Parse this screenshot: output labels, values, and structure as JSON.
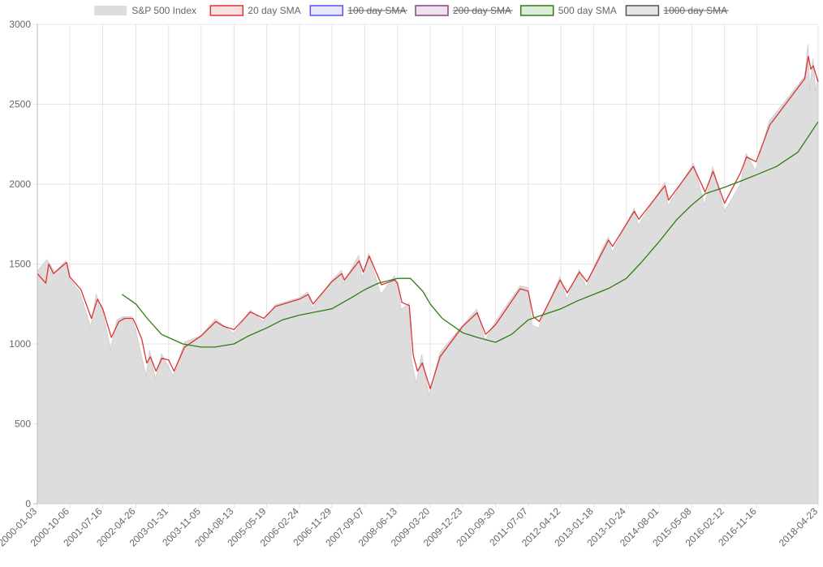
{
  "chart_data": {
    "type": "line",
    "title": "",
    "xlabel": "",
    "ylabel": "",
    "ylim": [
      0,
      3000
    ],
    "y_ticks": [
      0,
      500,
      1000,
      1500,
      2000,
      2500,
      3000
    ],
    "x_tick_labels": [
      "2000-01-03",
      "2000-10-06",
      "2001-07-16",
      "2002-04-26",
      "2003-01-31",
      "2003-11-05",
      "2004-08-13",
      "2005-05-19",
      "2006-02-24",
      "2006-11-29",
      "2007-09-07",
      "2008-06-13",
      "2009-03-20",
      "2009-12-23",
      "2010-09-30",
      "2011-07-07",
      "2012-04-12",
      "2013-01-18",
      "2013-10-24",
      "2014-08-01",
      "2015-05-08",
      "2016-02-12",
      "2016-11-16",
      "2018-04-23"
    ],
    "x_range": [
      "2000-01-03",
      "2018-04-23"
    ],
    "grid": true,
    "legend_position": "top",
    "series": [
      {
        "name": "S&P 500 Index",
        "style": "area",
        "color": "#dddddd",
        "hidden": false,
        "points": [
          [
            "2000-01-03",
            1455
          ],
          [
            "2000-03-24",
            1527
          ],
          [
            "2000-06-01",
            1450
          ],
          [
            "2000-09-01",
            1520
          ],
          [
            "2000-10-06",
            1408
          ],
          [
            "2001-01-02",
            1320
          ],
          [
            "2001-04-04",
            1103
          ],
          [
            "2001-05-21",
            1310
          ],
          [
            "2001-07-16",
            1200
          ],
          [
            "2001-09-21",
            966
          ],
          [
            "2001-11-15",
            1150
          ],
          [
            "2002-01-04",
            1170
          ],
          [
            "2002-03-19",
            1170
          ],
          [
            "2002-04-26",
            1076
          ],
          [
            "2002-07-23",
            797
          ],
          [
            "2002-08-22",
            960
          ],
          [
            "2002-10-09",
            777
          ],
          [
            "2002-12-02",
            937
          ],
          [
            "2003-01-31",
            856
          ],
          [
            "2003-03-11",
            800
          ],
          [
            "2003-06-17",
            1011
          ],
          [
            "2003-11-05",
            1051
          ],
          [
            "2004-03-05",
            1156
          ],
          [
            "2004-08-13",
            1064
          ],
          [
            "2004-12-31",
            1212
          ],
          [
            "2005-04-20",
            1138
          ],
          [
            "2005-08-03",
            1245
          ],
          [
            "2006-02-24",
            1289
          ],
          [
            "2006-05-05",
            1325
          ],
          [
            "2006-06-13",
            1223
          ],
          [
            "2006-11-29",
            1399
          ],
          [
            "2007-02-20",
            1460
          ],
          [
            "2007-03-05",
            1374
          ],
          [
            "2007-07-16",
            1553
          ],
          [
            "2007-08-15",
            1406
          ],
          [
            "2007-10-09",
            1565
          ],
          [
            "2008-01-22",
            1310
          ],
          [
            "2008-05-19",
            1426
          ],
          [
            "2008-06-13",
            1360
          ],
          [
            "2008-07-15",
            1214
          ],
          [
            "2008-09-19",
            1255
          ],
          [
            "2008-10-10",
            899
          ],
          [
            "2008-11-20",
            752
          ],
          [
            "2009-01-06",
            934
          ],
          [
            "2009-03-09",
            677
          ],
          [
            "2009-06-12",
            946
          ],
          [
            "2009-12-23",
            1118
          ],
          [
            "2010-04-23",
            1217
          ],
          [
            "2010-07-02",
            1022
          ],
          [
            "2010-09-30",
            1141
          ],
          [
            "2011-04-29",
            1363
          ],
          [
            "2011-07-07",
            1353
          ],
          [
            "2011-08-08",
            1119
          ],
          [
            "2011-10-03",
            1099
          ],
          [
            "2012-04-02",
            1419
          ],
          [
            "2012-06-01",
            1278
          ],
          [
            "2012-09-14",
            1465
          ],
          [
            "2012-11-15",
            1353
          ],
          [
            "2013-01-18",
            1485
          ],
          [
            "2013-05-21",
            1669
          ],
          [
            "2013-06-24",
            1573
          ],
          [
            "2013-12-31",
            1848
          ],
          [
            "2014-02-03",
            1741
          ],
          [
            "2014-09-18",
            2011
          ],
          [
            "2014-10-15",
            1862
          ],
          [
            "2015-05-21",
            2131
          ],
          [
            "2015-08-25",
            1867
          ],
          [
            "2015-11-03",
            2109
          ],
          [
            "2016-02-11",
            1829
          ],
          [
            "2016-06-27",
            2000
          ],
          [
            "2016-08-15",
            2190
          ],
          [
            "2016-11-04",
            2085
          ],
          [
            "2017-03-01",
            2395
          ],
          [
            "2017-12-29",
            2674
          ],
          [
            "2018-01-26",
            2873
          ],
          [
            "2018-02-08",
            2581
          ],
          [
            "2018-03-09",
            2786
          ],
          [
            "2018-04-02",
            2582
          ],
          [
            "2018-04-23",
            2670
          ]
        ]
      },
      {
        "name": "20 day SMA",
        "style": "line",
        "color": "#dd3333",
        "hidden": false,
        "points": [
          [
            "2000-01-03",
            1440
          ],
          [
            "2000-03-15",
            1380
          ],
          [
            "2000-04-10",
            1500
          ],
          [
            "2000-05-20",
            1440
          ],
          [
            "2000-09-10",
            1510
          ],
          [
            "2000-10-06",
            1420
          ],
          [
            "2001-01-10",
            1340
          ],
          [
            "2001-04-10",
            1160
          ],
          [
            "2001-06-01",
            1280
          ],
          [
            "2001-07-16",
            1220
          ],
          [
            "2001-09-28",
            1040
          ],
          [
            "2001-12-01",
            1140
          ],
          [
            "2002-01-20",
            1160
          ],
          [
            "2002-03-30",
            1160
          ],
          [
            "2002-04-26",
            1120
          ],
          [
            "2002-06-15",
            1030
          ],
          [
            "2002-07-28",
            880
          ],
          [
            "2002-08-28",
            920
          ],
          [
            "2002-10-15",
            830
          ],
          [
            "2002-12-05",
            910
          ],
          [
            "2003-01-31",
            900
          ],
          [
            "2003-03-18",
            830
          ],
          [
            "2003-06-17",
            980
          ],
          [
            "2003-11-05",
            1050
          ],
          [
            "2004-03-10",
            1140
          ],
          [
            "2004-05-15",
            1110
          ],
          [
            "2004-08-13",
            1090
          ],
          [
            "2004-12-31",
            1200
          ],
          [
            "2005-04-25",
            1160
          ],
          [
            "2005-08-03",
            1235
          ],
          [
            "2006-02-24",
            1280
          ],
          [
            "2006-05-10",
            1310
          ],
          [
            "2006-06-20",
            1250
          ],
          [
            "2006-11-29",
            1390
          ],
          [
            "2007-02-22",
            1440
          ],
          [
            "2007-03-15",
            1400
          ],
          [
            "2007-07-20",
            1520
          ],
          [
            "2007-08-25",
            1450
          ],
          [
            "2007-10-15",
            1550
          ],
          [
            "2008-01-28",
            1370
          ],
          [
            "2008-05-20",
            1400
          ],
          [
            "2008-06-13",
            1380
          ],
          [
            "2008-07-20",
            1260
          ],
          [
            "2008-09-22",
            1240
          ],
          [
            "2008-10-25",
            930
          ],
          [
            "2008-12-01",
            830
          ],
          [
            "2009-01-10",
            880
          ],
          [
            "2009-03-20",
            720
          ],
          [
            "2009-06-12",
            920
          ],
          [
            "2009-12-23",
            1110
          ],
          [
            "2010-04-25",
            1195
          ],
          [
            "2010-07-08",
            1060
          ],
          [
            "2010-09-30",
            1120
          ],
          [
            "2011-04-29",
            1345
          ],
          [
            "2011-07-07",
            1330
          ],
          [
            "2011-08-20",
            1170
          ],
          [
            "2011-10-10",
            1140
          ],
          [
            "2012-04-05",
            1400
          ],
          [
            "2012-06-05",
            1320
          ],
          [
            "2012-09-18",
            1450
          ],
          [
            "2012-11-20",
            1390
          ],
          [
            "2013-01-18",
            1470
          ],
          [
            "2013-05-25",
            1650
          ],
          [
            "2013-06-28",
            1610
          ],
          [
            "2013-12-31",
            1830
          ],
          [
            "2014-02-08",
            1780
          ],
          [
            "2014-09-20",
            1990
          ],
          [
            "2014-10-20",
            1900
          ],
          [
            "2015-05-21",
            2110
          ],
          [
            "2015-08-30",
            1950
          ],
          [
            "2015-11-05",
            2080
          ],
          [
            "2016-02-12",
            1880
          ],
          [
            "2016-06-27",
            2070
          ],
          [
            "2016-08-18",
            2170
          ],
          [
            "2016-11-08",
            2140
          ],
          [
            "2017-03-05",
            2370
          ],
          [
            "2017-12-29",
            2660
          ],
          [
            "2018-01-29",
            2800
          ],
          [
            "2018-02-20",
            2720
          ],
          [
            "2018-03-12",
            2740
          ],
          [
            "2018-04-23",
            2640
          ]
        ]
      },
      {
        "name": "100 day SMA",
        "style": "line",
        "color": "#5555ee",
        "hidden": true,
        "points": []
      },
      {
        "name": "200 day SMA",
        "style": "line",
        "color": "#884488",
        "hidden": true,
        "points": []
      },
      {
        "name": "500 day SMA",
        "style": "line",
        "color": "#2e7d12",
        "hidden": false,
        "points": [
          [
            "2001-12-28",
            1310
          ],
          [
            "2002-04-26",
            1250
          ],
          [
            "2002-08-01",
            1160
          ],
          [
            "2002-12-01",
            1060
          ],
          [
            "2003-01-31",
            1040
          ],
          [
            "2003-06-01",
            1000
          ],
          [
            "2003-11-05",
            980
          ],
          [
            "2004-03-01",
            980
          ],
          [
            "2004-08-13",
            1000
          ],
          [
            "2004-12-15",
            1050
          ],
          [
            "2005-05-19",
            1100
          ],
          [
            "2005-10-01",
            1150
          ],
          [
            "2006-02-24",
            1180
          ],
          [
            "2006-11-29",
            1220
          ],
          [
            "2007-05-15",
            1290
          ],
          [
            "2007-09-07",
            1340
          ],
          [
            "2008-01-01",
            1380
          ],
          [
            "2008-06-13",
            1410
          ],
          [
            "2008-10-01",
            1410
          ],
          [
            "2009-01-15",
            1330
          ],
          [
            "2009-03-20",
            1250
          ],
          [
            "2009-07-01",
            1160
          ],
          [
            "2009-12-23",
            1070
          ],
          [
            "2010-05-01",
            1040
          ],
          [
            "2010-09-30",
            1010
          ],
          [
            "2011-02-15",
            1060
          ],
          [
            "2011-07-07",
            1150
          ],
          [
            "2011-11-01",
            1180
          ],
          [
            "2012-04-12",
            1220
          ],
          [
            "2012-09-01",
            1270
          ],
          [
            "2013-01-18",
            1310
          ],
          [
            "2013-06-01",
            1350
          ],
          [
            "2013-10-24",
            1410
          ],
          [
            "2014-03-01",
            1510
          ],
          [
            "2014-08-01",
            1640
          ],
          [
            "2015-01-01",
            1780
          ],
          [
            "2015-05-08",
            1870
          ],
          [
            "2015-09-01",
            1940
          ],
          [
            "2016-02-12",
            1980
          ],
          [
            "2016-07-01",
            2020
          ],
          [
            "2016-11-16",
            2060
          ],
          [
            "2017-05-01",
            2110
          ],
          [
            "2017-11-01",
            2200
          ],
          [
            "2018-04-23",
            2390
          ]
        ]
      },
      {
        "name": "1000 day SMA",
        "style": "line",
        "color": "#555555",
        "hidden": true,
        "points": []
      }
    ]
  }
}
